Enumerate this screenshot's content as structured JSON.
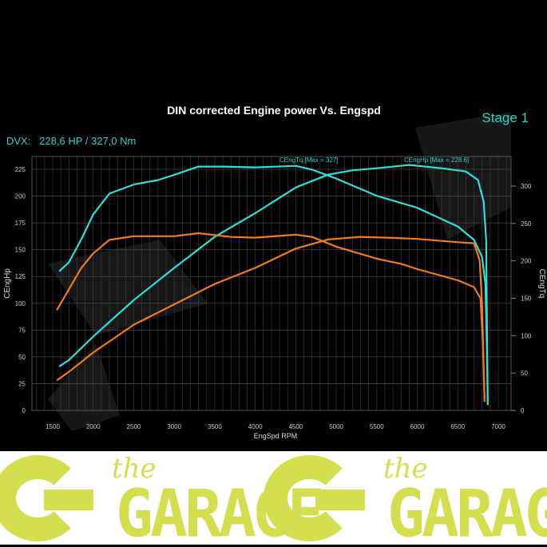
{
  "chart_data": {
    "type": "line",
    "title": "DIN corrected Engine power Vs. Engspd",
    "badge": "Stage 1",
    "summary": "DVX:   228,6 HP / 327,0 Nm",
    "xlabel": "EngSpd RPM",
    "ylabel_left": "CEngHp",
    "ylabel_right": "CEngTq",
    "xlim": [
      1300,
      7200
    ],
    "ylim_left": [
      0,
      235
    ],
    "ylim_right": [
      0,
      350
    ],
    "xticks": [
      1500,
      2000,
      2500,
      3000,
      3500,
      4000,
      4500,
      5000,
      5500,
      6000,
      6500,
      7000
    ],
    "yticks_left": [
      0,
      25,
      50,
      75,
      100,
      125,
      150,
      175,
      200,
      225
    ],
    "yticks_right": [
      0,
      50,
      100,
      150,
      200,
      250,
      300
    ],
    "grid": true,
    "annotations": [
      "CEngTq [Max = 327]",
      "CEngHp [Max = 228.6]"
    ],
    "colors": {
      "tuned": "#2fe0d8",
      "stock": "#f07c1a",
      "text": "#2fd4cc"
    },
    "series": [
      {
        "key": "tuned_tq",
        "axis": "right",
        "color": "#2fe0d8",
        "x": [
          1580,
          1700,
          1850,
          2000,
          2200,
          2500,
          2800,
          3000,
          3300,
          3600,
          4000,
          4500,
          4700,
          5000,
          5500,
          6000,
          6500,
          6700,
          6800,
          6840,
          6860,
          6870
        ],
        "y": [
          186,
          198,
          228,
          262,
          290,
          302,
          308,
          315,
          326,
          326,
          325,
          327,
          322,
          310,
          287,
          271,
          246,
          228,
          205,
          170,
          80,
          10
        ]
      },
      {
        "key": "tuned_hp",
        "axis": "left",
        "color": "#2fe0d8",
        "x": [
          1580,
          1700,
          2000,
          2500,
          3000,
          3500,
          4000,
          4500,
          4900,
          5200,
          5500,
          5900,
          6300,
          6600,
          6750,
          6820,
          6850,
          6870
        ],
        "y": [
          41,
          47,
          69,
          103,
          133,
          162,
          184,
          208,
          220,
          224,
          226,
          229,
          226,
          223,
          215,
          195,
          159,
          5
        ]
      },
      {
        "key": "stock_tq",
        "axis": "right",
        "color": "#f07c1a",
        "x": [
          1550,
          1700,
          1850,
          2000,
          2200,
          2500,
          3000,
          3300,
          3700,
          4000,
          4500,
          4700,
          5000,
          5500,
          5800,
          6000,
          6500,
          6700,
          6780,
          6810,
          6830
        ],
        "y": [
          134,
          162,
          190,
          210,
          228,
          233,
          233,
          237,
          232,
          231,
          235,
          232,
          219,
          203,
          196,
          189,
          174,
          165,
          150,
          90,
          15
        ]
      },
      {
        "key": "stock_hp",
        "axis": "left",
        "color": "#f07c1a",
        "x": [
          1550,
          1700,
          2000,
          2500,
          3000,
          3500,
          4000,
          4500,
          4900,
          5300,
          5700,
          6000,
          6500,
          6700,
          6770,
          6800,
          6820,
          6830
        ],
        "y": [
          28,
          36,
          54,
          80,
          99,
          118,
          133,
          151,
          159.5,
          162,
          161,
          160,
          157,
          156,
          140,
          99,
          40,
          8
        ]
      }
    ]
  },
  "logo": {
    "text_small": "the",
    "text_big": "GARAGE"
  }
}
